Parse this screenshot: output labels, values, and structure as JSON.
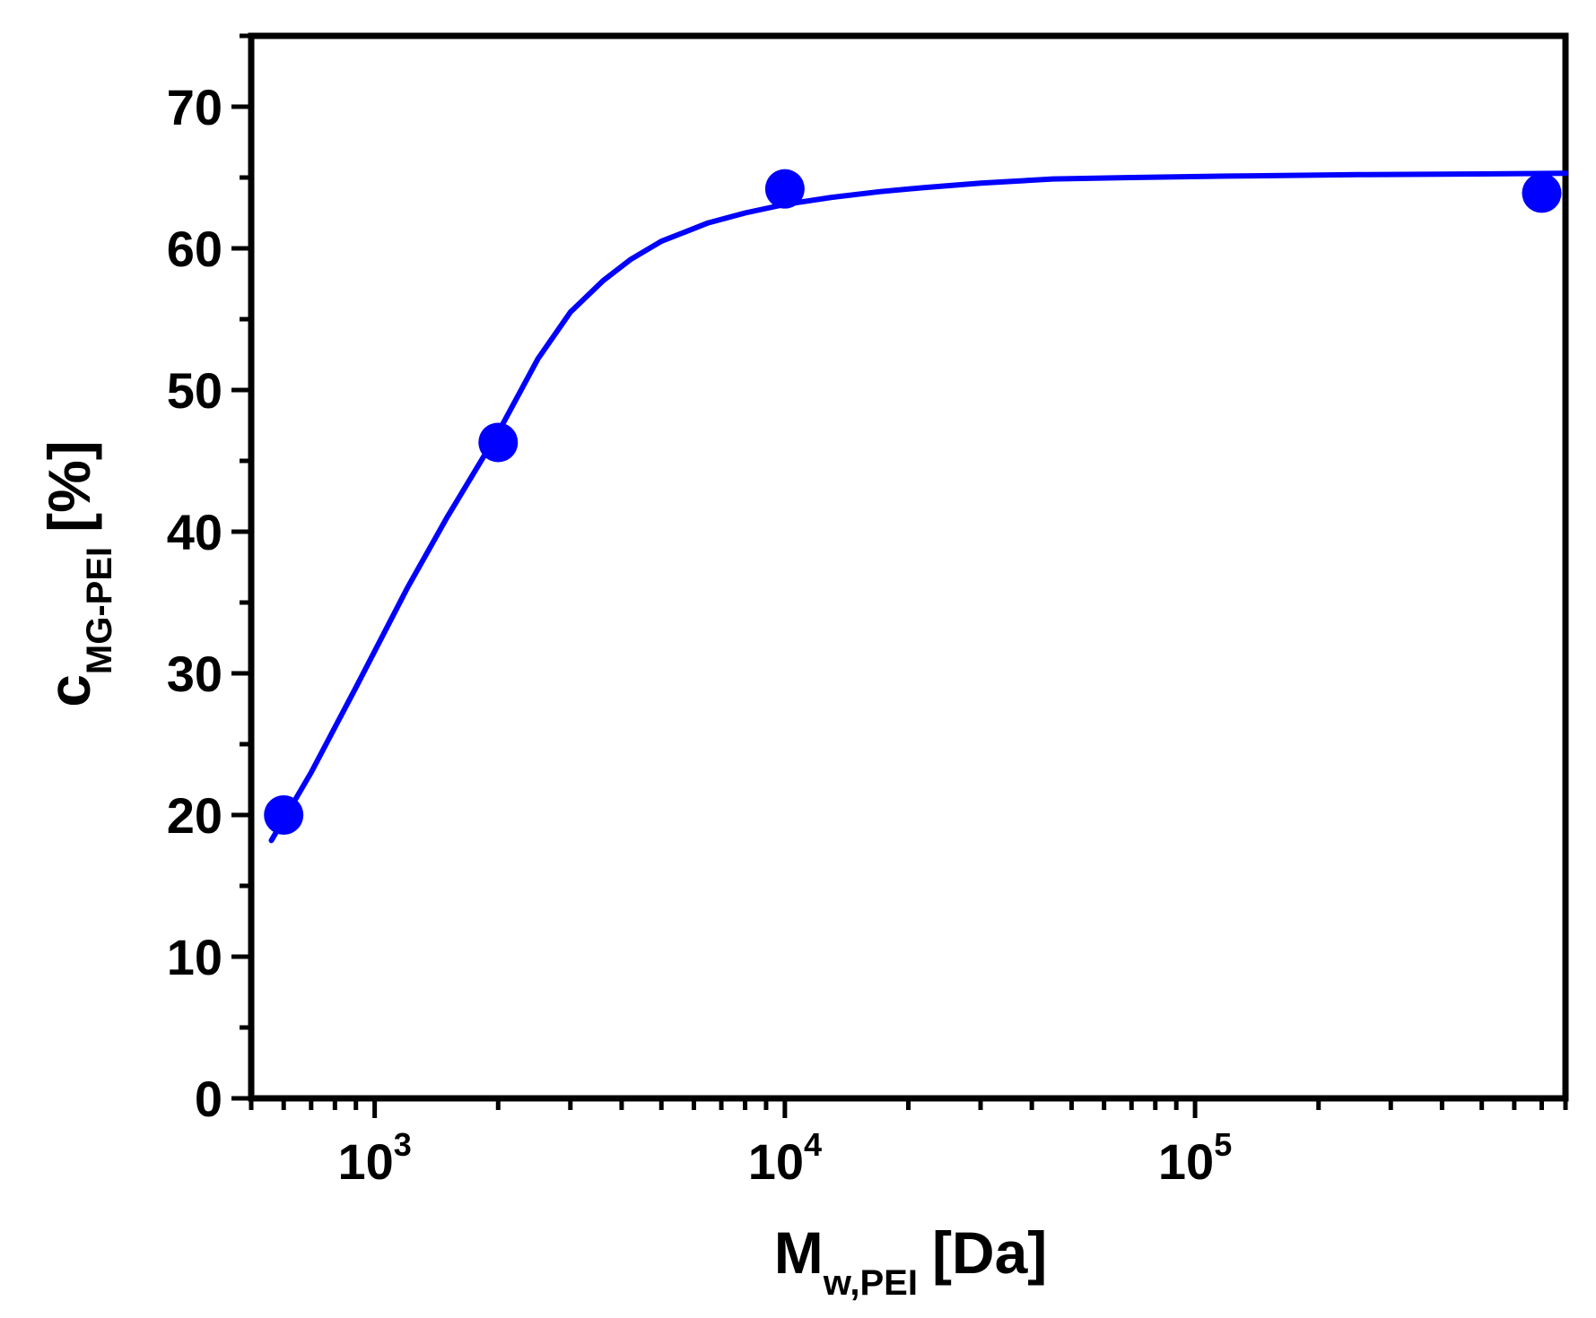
{
  "chart_data": {
    "type": "scatter",
    "title": "",
    "xlabel": {
      "main": "M",
      "sub": "w,PEI",
      "unit": "[Da]"
    },
    "ylabel": {
      "main": "c",
      "sub": "MG-PEI",
      "unit": "[%]"
    },
    "x_scale": "log",
    "xlim": [
      500,
      800000
    ],
    "ylim": [
      0,
      75
    ],
    "x_ticks": [
      {
        "base": "10",
        "exp": "3",
        "value": 1000
      },
      {
        "base": "10",
        "exp": "4",
        "value": 10000
      },
      {
        "base": "10",
        "exp": "5",
        "value": 100000
      }
    ],
    "y_ticks": [
      "0",
      "10",
      "20",
      "30",
      "40",
      "50",
      "60",
      "70"
    ],
    "grid": false,
    "legend": "none",
    "series": [
      {
        "kind": "points",
        "color": "#0000ff",
        "x": [
          600,
          2000,
          10000,
          700000
        ],
        "y": [
          20,
          46.3,
          64.2,
          63.9
        ]
      },
      {
        "kind": "fit-line",
        "color": "#0000ff",
        "x": [
          560,
          700,
          900,
          1200,
          1500,
          2000,
          2500,
          3000,
          3600,
          4200,
          5000,
          6500,
          8000,
          10000,
          13000,
          17000,
          22000,
          30000,
          45000,
          70000,
          120000,
          250000,
          500000,
          800000
        ],
        "y": [
          18.2,
          23.0,
          29.0,
          36.0,
          41.0,
          47.0,
          52.2,
          55.5,
          57.7,
          59.2,
          60.5,
          61.8,
          62.5,
          63.1,
          63.6,
          64.0,
          64.3,
          64.6,
          64.9,
          65.0,
          65.1,
          65.2,
          65.25,
          65.3
        ]
      }
    ]
  }
}
